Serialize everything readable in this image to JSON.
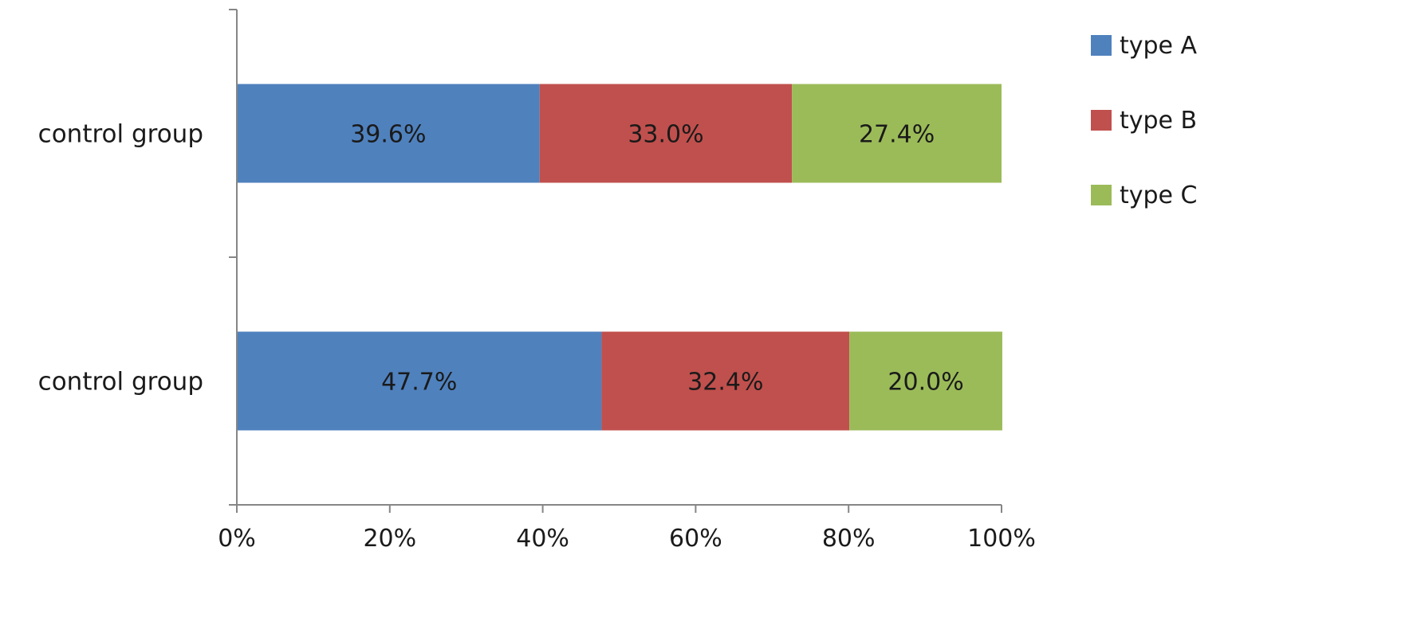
{
  "chart_data": {
    "type": "bar",
    "orientation": "horizontal",
    "stacked": true,
    "percent_stacked": true,
    "categories": [
      "control group",
      "control group"
    ],
    "series": [
      {
        "name": "type A",
        "color": "#4f81bd",
        "values": [
          39.6,
          47.7
        ],
        "labels": [
          "39.6%",
          "47.7%"
        ]
      },
      {
        "name": "type B",
        "color": "#c0504d",
        "values": [
          33.0,
          32.4
        ],
        "labels": [
          "33.0%",
          "32.4%"
        ]
      },
      {
        "name": "type C",
        "color": "#9bbb59",
        "values": [
          27.4,
          20.0
        ],
        "labels": [
          "27.4%",
          "20.0%"
        ]
      }
    ],
    "xlim": [
      0,
      100
    ],
    "x_ticks": [
      "0%",
      "20%",
      "40%",
      "60%",
      "80%",
      "100%"
    ],
    "x_tick_values": [
      0,
      20,
      40,
      60,
      80,
      100
    ],
    "xlabel": "",
    "ylabel": "",
    "title": "",
    "grid": false,
    "legend_position": "top-right",
    "axis_color": "#868686",
    "text_color": "#1a1a1a"
  }
}
